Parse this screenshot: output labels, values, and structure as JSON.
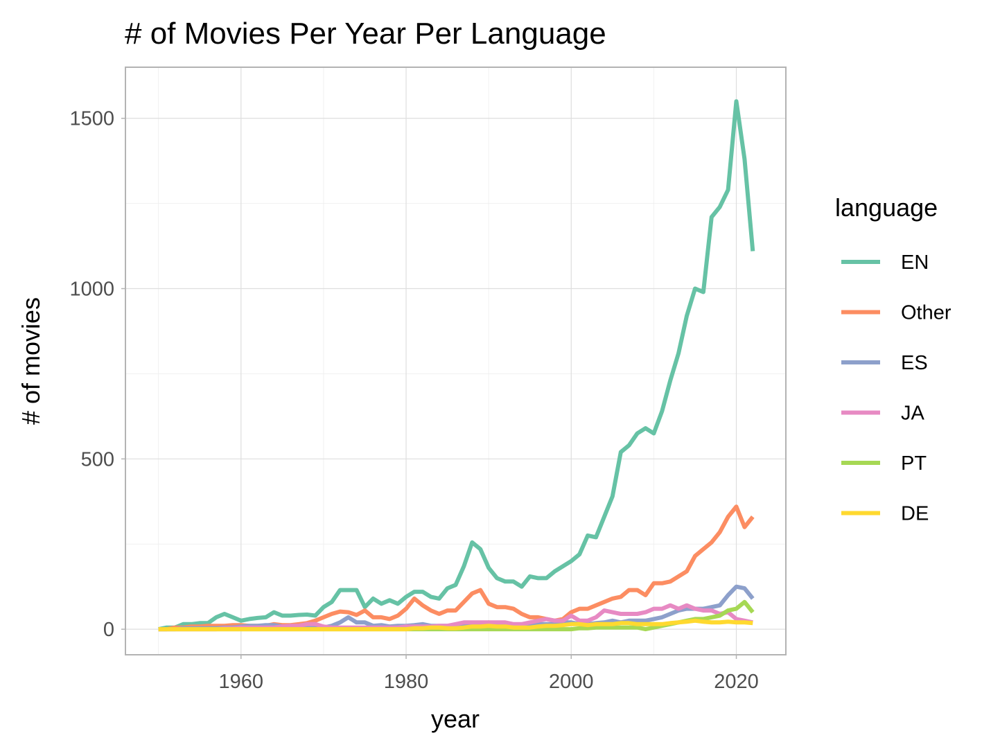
{
  "chart_data": {
    "type": "line",
    "title": "# of Movies Per Year Per Language",
    "xlabel": "year",
    "ylabel": "# of movies",
    "xlim": [
      1946,
      2026
    ],
    "ylim": [
      -75,
      1650
    ],
    "x_ticks": [
      1960,
      1980,
      2000,
      2020
    ],
    "y_ticks": [
      0,
      500,
      1000,
      1500
    ],
    "grid": true,
    "legend": {
      "title": "language",
      "position": "right"
    },
    "x": [
      1950,
      1951,
      1952,
      1953,
      1954,
      1955,
      1956,
      1957,
      1958,
      1959,
      1960,
      1961,
      1962,
      1963,
      1964,
      1965,
      1966,
      1967,
      1968,
      1969,
      1970,
      1971,
      1972,
      1973,
      1974,
      1975,
      1976,
      1977,
      1978,
      1979,
      1980,
      1981,
      1982,
      1983,
      1984,
      1985,
      1986,
      1987,
      1988,
      1989,
      1990,
      1991,
      1992,
      1993,
      1994,
      1995,
      1996,
      1997,
      1998,
      1999,
      2000,
      2001,
      2002,
      2003,
      2004,
      2005,
      2006,
      2007,
      2008,
      2009,
      2010,
      2011,
      2012,
      2013,
      2014,
      2015,
      2016,
      2017,
      2018,
      2019,
      2020,
      2021,
      2022
    ],
    "series": [
      {
        "name": "EN",
        "color": "#66c2a5",
        "values": [
          0,
          5,
          5,
          15,
          15,
          18,
          18,
          35,
          45,
          35,
          25,
          30,
          33,
          35,
          50,
          40,
          40,
          42,
          43,
          40,
          65,
          80,
          115,
          115,
          115,
          65,
          90,
          75,
          85,
          75,
          95,
          110,
          110,
          95,
          90,
          120,
          130,
          185,
          255,
          235,
          180,
          150,
          140,
          140,
          125,
          155,
          150,
          150,
          170,
          185,
          200,
          220,
          275,
          270,
          330,
          390,
          520,
          540,
          575,
          590,
          575,
          640,
          730,
          810,
          920,
          1000,
          990,
          1210,
          1240,
          1290,
          1550,
          1380,
          1110
        ]
      },
      {
        "name": "Other",
        "color": "#fc8d62",
        "values": [
          0,
          0,
          5,
          5,
          8,
          8,
          10,
          10,
          10,
          12,
          12,
          10,
          10,
          10,
          15,
          12,
          12,
          15,
          18,
          25,
          35,
          45,
          52,
          50,
          42,
          55,
          35,
          35,
          30,
          40,
          60,
          90,
          70,
          55,
          45,
          55,
          55,
          80,
          105,
          115,
          75,
          65,
          65,
          60,
          45,
          35,
          35,
          30,
          25,
          30,
          50,
          60,
          60,
          70,
          80,
          90,
          95,
          115,
          115,
          100,
          135,
          135,
          140,
          155,
          170,
          215,
          235,
          255,
          285,
          330,
          360,
          300,
          330
        ]
      },
      {
        "name": "ES",
        "color": "#8da0cb",
        "values": [
          0,
          0,
          0,
          3,
          3,
          3,
          3,
          3,
          5,
          5,
          8,
          10,
          10,
          12,
          12,
          8,
          8,
          5,
          8,
          8,
          5,
          10,
          20,
          35,
          20,
          20,
          10,
          12,
          8,
          10,
          10,
          12,
          15,
          10,
          10,
          10,
          10,
          15,
          15,
          15,
          20,
          15,
          12,
          12,
          10,
          10,
          15,
          15,
          15,
          20,
          20,
          15,
          15,
          18,
          20,
          25,
          20,
          25,
          25,
          25,
          30,
          35,
          45,
          55,
          60,
          60,
          60,
          65,
          70,
          100,
          125,
          120,
          90
        ]
      },
      {
        "name": "JA",
        "color": "#e78ac3",
        "values": [
          0,
          0,
          0,
          0,
          0,
          0,
          0,
          0,
          3,
          3,
          5,
          5,
          5,
          5,
          5,
          8,
          10,
          10,
          15,
          15,
          8,
          5,
          5,
          5,
          5,
          5,
          5,
          5,
          5,
          5,
          8,
          8,
          8,
          8,
          10,
          10,
          15,
          20,
          20,
          20,
          20,
          20,
          20,
          15,
          15,
          20,
          25,
          30,
          25,
          25,
          40,
          25,
          25,
          35,
          55,
          50,
          45,
          45,
          45,
          50,
          60,
          60,
          70,
          60,
          70,
          60,
          55,
          55,
          45,
          50,
          30,
          25,
          20
        ]
      },
      {
        "name": "PT",
        "color": "#a6d854",
        "values": [
          0,
          0,
          0,
          0,
          0,
          0,
          0,
          0,
          0,
          0,
          0,
          0,
          0,
          0,
          0,
          0,
          0,
          0,
          0,
          0,
          0,
          0,
          0,
          0,
          0,
          0,
          0,
          0,
          0,
          0,
          0,
          0,
          0,
          0,
          0,
          0,
          0,
          0,
          0,
          0,
          0,
          0,
          0,
          0,
          0,
          0,
          0,
          0,
          0,
          0,
          0,
          3,
          3,
          5,
          5,
          5,
          5,
          5,
          5,
          0,
          5,
          10,
          15,
          20,
          25,
          30,
          30,
          35,
          40,
          55,
          60,
          80,
          50
        ]
      },
      {
        "name": "DE",
        "color": "#ffd92f",
        "values": [
          0,
          0,
          0,
          0,
          0,
          0,
          0,
          0,
          0,
          0,
          0,
          0,
          0,
          0,
          0,
          0,
          0,
          0,
          0,
          0,
          0,
          0,
          0,
          0,
          0,
          0,
          0,
          0,
          0,
          0,
          0,
          3,
          3,
          5,
          5,
          3,
          3,
          5,
          8,
          8,
          10,
          8,
          8,
          5,
          5,
          5,
          8,
          10,
          10,
          12,
          15,
          15,
          12,
          15,
          15,
          15,
          18,
          18,
          15,
          15,
          15,
          15,
          18,
          20,
          22,
          25,
          22,
          20,
          20,
          22,
          20,
          20,
          18
        ]
      }
    ]
  }
}
